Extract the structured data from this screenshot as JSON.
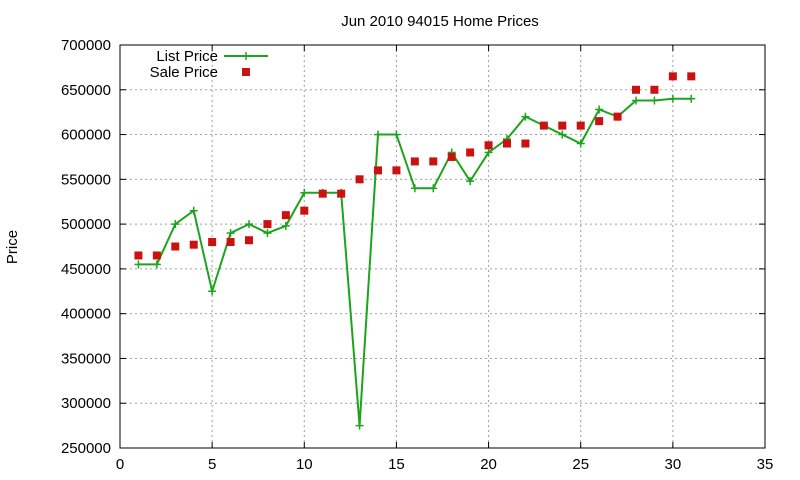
{
  "chart_data": {
    "type": "line",
    "title": "Jun 2010 94015 Home Prices",
    "ylabel": "Price",
    "xlabel": "",
    "xlim": [
      0,
      35
    ],
    "ylim": [
      250000,
      700000
    ],
    "x_ticks": [
      0,
      5,
      10,
      15,
      20,
      25,
      30,
      35
    ],
    "y_ticks": [
      250000,
      300000,
      350000,
      400000,
      450000,
      500000,
      550000,
      600000,
      650000,
      700000
    ],
    "grid": true,
    "legend_position": "top-left",
    "series": [
      {
        "name": "List Price",
        "style": "linespoints",
        "color": "#1ca51c",
        "x": [
          1,
          2,
          3,
          4,
          5,
          6,
          7,
          8,
          9,
          10,
          11,
          12,
          13,
          14,
          15,
          16,
          17,
          18,
          19,
          20,
          21,
          22,
          23,
          24,
          25,
          26,
          27,
          28,
          29,
          30,
          31
        ],
        "y": [
          455000,
          455000,
          500000,
          515000,
          425000,
          490000,
          500000,
          490000,
          498000,
          535000,
          535000,
          535000,
          275000,
          600000,
          600000,
          540000,
          540000,
          580000,
          548000,
          580000,
          595000,
          620000,
          610000,
          600000,
          590000,
          628000,
          620000,
          638000,
          638000,
          640000,
          640000
        ]
      },
      {
        "name": "Sale Price",
        "style": "points",
        "color": "#cc1111",
        "x": [
          1,
          2,
          3,
          4,
          5,
          6,
          7,
          8,
          9,
          10,
          11,
          12,
          13,
          14,
          15,
          16,
          17,
          18,
          19,
          20,
          21,
          22,
          23,
          24,
          25,
          26,
          27,
          28,
          29,
          30,
          31
        ],
        "y": [
          465000,
          465000,
          475000,
          477000,
          480000,
          480000,
          482000,
          500000,
          510000,
          515000,
          534000,
          534000,
          550000,
          560000,
          560000,
          570000,
          570000,
          575000,
          580000,
          588000,
          590000,
          590000,
          610000,
          610000,
          610000,
          615000,
          620000,
          650000,
          650000,
          665000,
          665000
        ]
      }
    ]
  }
}
